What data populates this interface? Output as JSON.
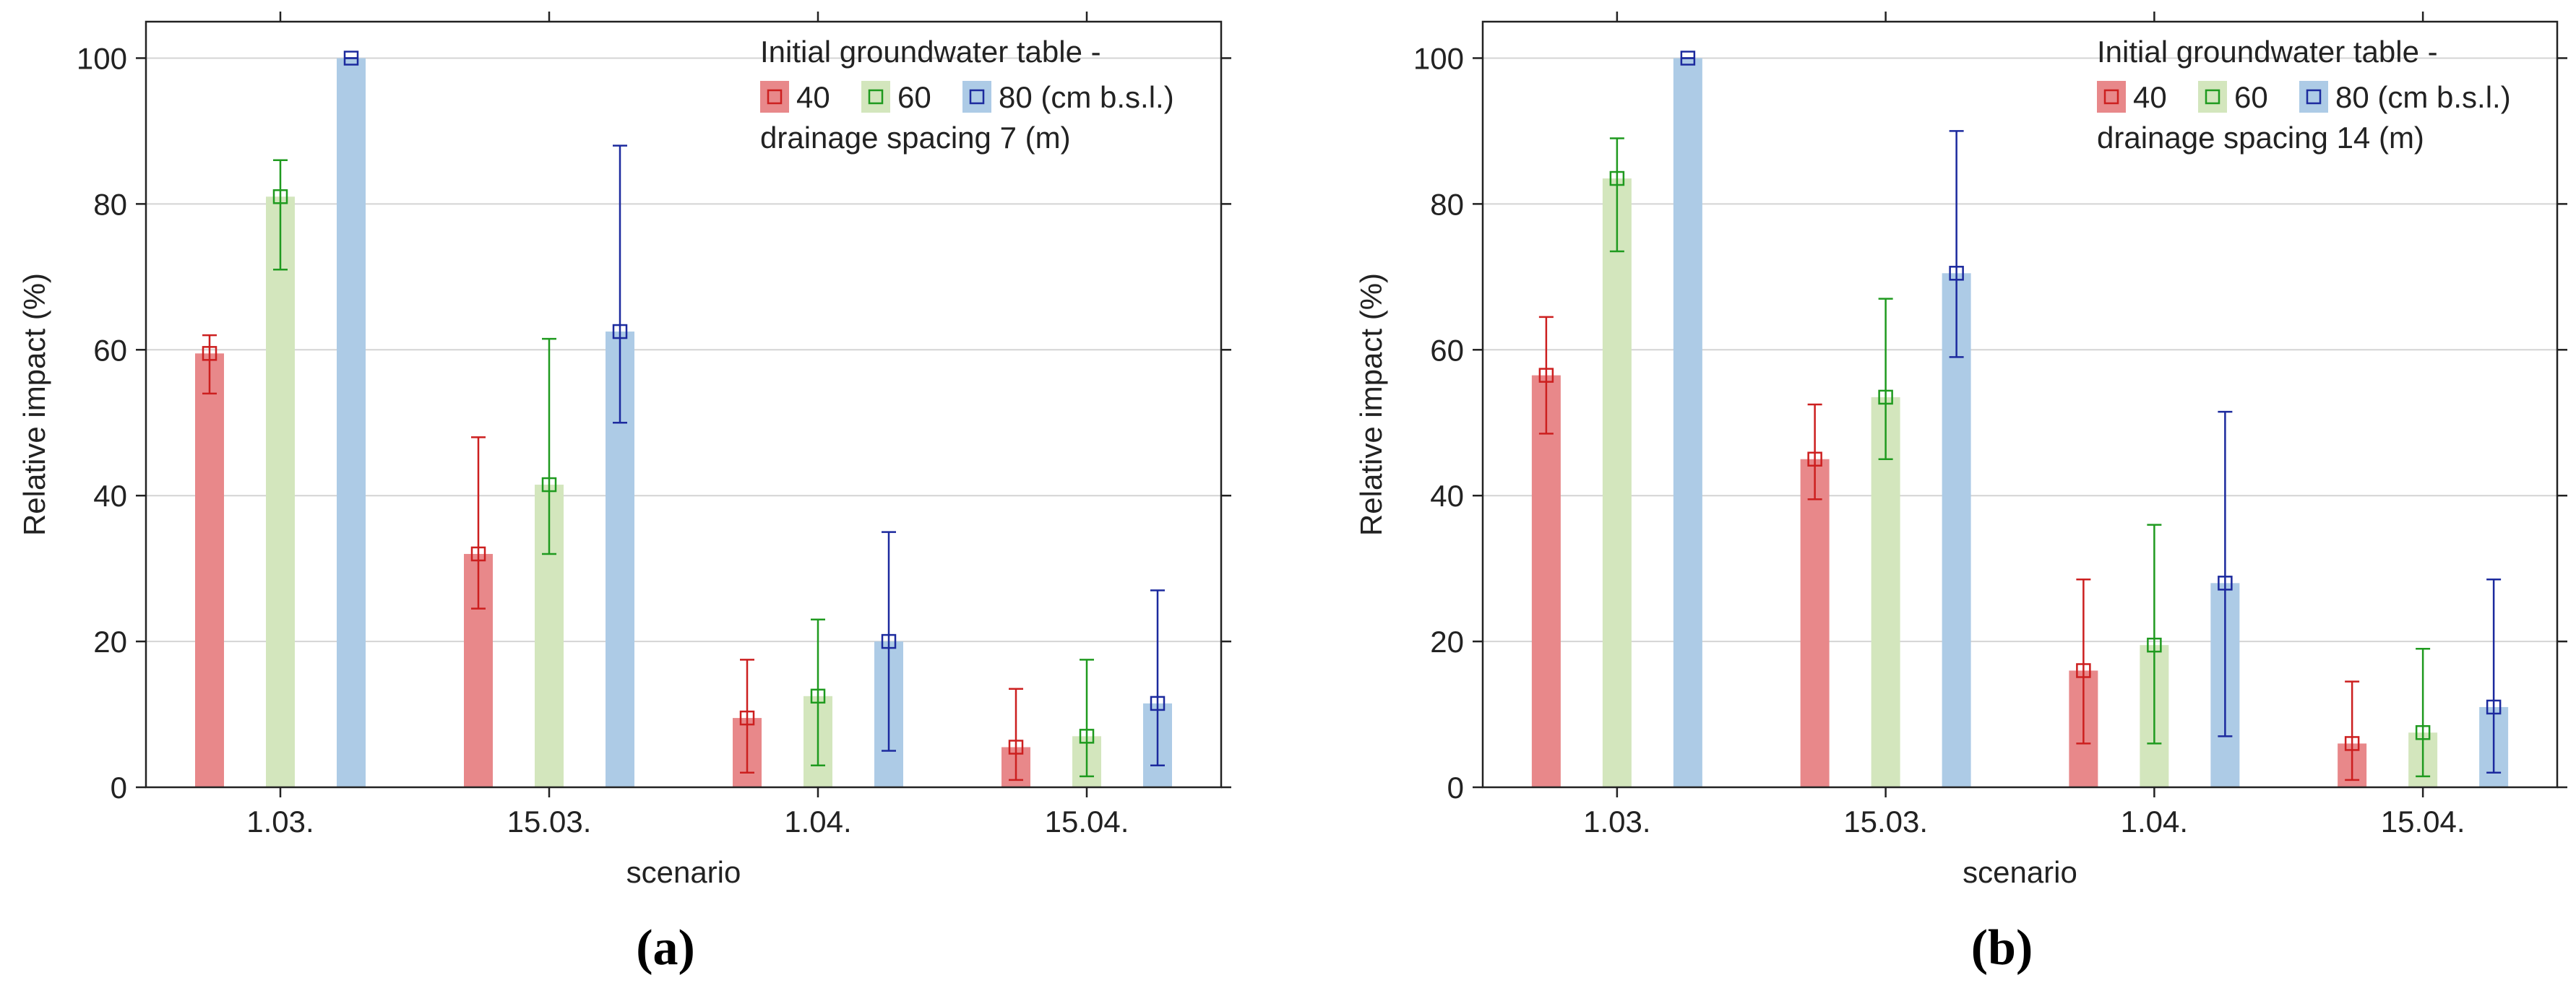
{
  "colors": {
    "bar_40": "#e8888a",
    "bar_60": "#d3e6bd",
    "bar_80": "#adcbe6",
    "err_40": "#cc1f1f",
    "err_60": "#1f9a1f",
    "err_80": "#1c2a9e",
    "grid": "#d4d4d4",
    "axis": "#222222"
  },
  "chart_data": [
    {
      "type": "bar",
      "panel_label": "(a)",
      "categories": [
        "1.03.",
        "15.03.",
        "1.04.",
        "15.04."
      ],
      "xlabel": "scenario",
      "ylabel": "Relative impact (%)",
      "ylim": [
        0,
        105
      ],
      "yticks": [
        0,
        20,
        40,
        60,
        80,
        100
      ],
      "grid": true,
      "legend_position": "top-right",
      "legend": {
        "title": "Initial groundwater table -",
        "entries": [
          "40",
          "60",
          "80 (cm b.s.l.)"
        ],
        "footer": "drainage spacing 7 (m)"
      },
      "series": [
        {
          "name": "40",
          "values": [
            59.5,
            32,
            9.5,
            5.5
          ],
          "err_low": [
            54,
            24.5,
            2,
            1
          ],
          "err_high": [
            62,
            48,
            17.5,
            13.5
          ]
        },
        {
          "name": "60",
          "values": [
            81,
            41.5,
            12.5,
            7
          ],
          "err_low": [
            71,
            32,
            3,
            1.5
          ],
          "err_high": [
            86,
            61.5,
            23,
            17.5
          ]
        },
        {
          "name": "80",
          "values": [
            100,
            62.5,
            20,
            11.5
          ],
          "err_low": [
            100,
            50,
            5,
            3
          ],
          "err_high": [
            100,
            88,
            35,
            27
          ]
        }
      ]
    },
    {
      "type": "bar",
      "panel_label": "(b)",
      "categories": [
        "1.03.",
        "15.03.",
        "1.04.",
        "15.04."
      ],
      "xlabel": "scenario",
      "ylabel": "Relative impact (%)",
      "ylim": [
        0,
        105
      ],
      "yticks": [
        0,
        20,
        40,
        60,
        80,
        100
      ],
      "grid": true,
      "legend_position": "top-right",
      "legend": {
        "title": "Initial groundwater table -",
        "entries": [
          "40",
          "60",
          "80 (cm b.s.l.)"
        ],
        "footer": "drainage spacing 14 (m)"
      },
      "series": [
        {
          "name": "40",
          "values": [
            56.5,
            45,
            16,
            6
          ],
          "err_low": [
            48.5,
            39.5,
            6,
            1
          ],
          "err_high": [
            64.5,
            52.5,
            28.5,
            14.5
          ]
        },
        {
          "name": "60",
          "values": [
            83.5,
            53.5,
            19.5,
            7.5
          ],
          "err_low": [
            73.5,
            45,
            6,
            1.5
          ],
          "err_high": [
            89,
            67,
            36,
            19
          ]
        },
        {
          "name": "80",
          "values": [
            100,
            70.5,
            28,
            11
          ],
          "err_low": [
            100,
            59,
            7,
            2
          ],
          "err_high": [
            100,
            90,
            51.5,
            28.5
          ]
        }
      ]
    }
  ]
}
